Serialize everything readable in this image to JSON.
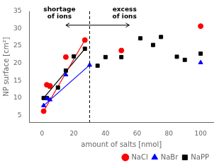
{
  "chart_data": {
    "type": "scatter",
    "xlabel": "amount of salts [nmol]",
    "ylabel": "NP surface [cm²]",
    "series": [
      {
        "name": "NaCl",
        "color": "#ff0000",
        "marker": "circle",
        "x": [
          1,
          3,
          5,
          15,
          27,
          50,
          100
        ],
        "values": [
          6.2,
          13.8,
          13.5,
          21.8,
          26.7,
          23.7,
          30.7
        ],
        "fit_x": [
          1,
          27
        ],
        "fit_values": [
          6.2,
          26.7
        ]
      },
      {
        "name": "NaBr",
        "color": "#0000ff",
        "marker": "triangle",
        "x": [
          1,
          3,
          5,
          15,
          30,
          100
        ],
        "values": [
          7.8,
          9.8,
          9.5,
          16.7,
          19.5,
          20.2
        ],
        "fit_x": [
          1,
          30
        ],
        "fit_values": [
          7.8,
          19.5
        ]
      },
      {
        "name": "NaPP",
        "color": "#000000",
        "marker": "square",
        "x": [
          1,
          3,
          5,
          10,
          15,
          20,
          27,
          35,
          40,
          50,
          62,
          70,
          75,
          85,
          90,
          100
        ],
        "values": [
          10.0,
          10.0,
          13.3,
          13.0,
          17.9,
          22.0,
          24.2,
          19.3,
          21.8,
          21.8,
          27.2,
          25.3,
          27.6,
          21.9,
          21.0,
          22.8
        ],
        "fit_x": [
          1,
          27
        ],
        "fit_values": [
          10.0,
          24.2
        ]
      }
    ],
    "vline": {
      "x": 30,
      "line_style": "dashed"
    },
    "arrow": {
      "x": [
        15,
        55
      ],
      "y": 31
    },
    "annotations": [
      {
        "text": "shortage\nof ions",
        "x": 11,
        "y": 32.5
      },
      {
        "text": "excess\nof ions",
        "x": 52,
        "y": 32.5
      }
    ],
    "xlim": [
      -8,
      108
    ],
    "xticks": [
      0,
      20,
      40,
      60,
      80,
      100
    ],
    "ylim": [
      3,
      35
    ],
    "yticks": [
      5,
      10,
      15,
      20,
      25,
      30,
      35
    ],
    "grid": false,
    "legend": "lower right"
  }
}
